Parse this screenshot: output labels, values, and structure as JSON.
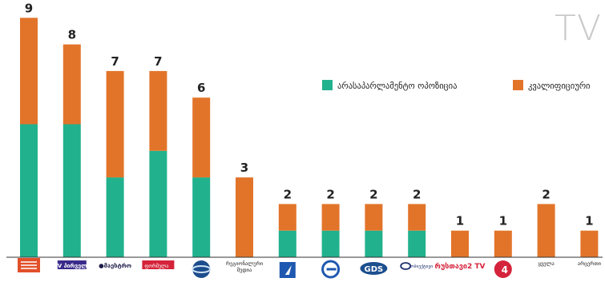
{
  "title": "TV",
  "chart_data": {
    "type": "bar",
    "stacked": true,
    "title": "TV",
    "ylim": [
      0,
      9
    ],
    "grid": false,
    "legend_position": "top-right",
    "categories": [
      "IMEDI",
      "TV Pirveli",
      "Maestro",
      "Formula",
      "Kavkasia",
      "რეგიონალური მედია",
      "Channel 1",
      "Ertsulovneba",
      "GDS",
      "Obieqtivi",
      "Rustavi 2",
      "Channel 4",
      "ყველა",
      "არცერთი"
    ],
    "series": [
      {
        "name": "არასაპარლამენტო ოპოზიცია",
        "color": "#21b18d",
        "values": [
          5,
          5,
          3,
          4,
          3,
          0,
          1,
          1,
          1,
          1,
          0,
          0,
          0,
          0
        ]
      },
      {
        "name": "კვალიფიციური",
        "color": "#e2742a",
        "values": [
          4,
          3,
          4,
          3,
          3,
          3,
          1,
          1,
          1,
          1,
          1,
          1,
          2,
          1
        ]
      }
    ],
    "totals": [
      9,
      8,
      7,
      7,
      6,
      3,
      2,
      2,
      2,
      2,
      1,
      1,
      2,
      1
    ]
  },
  "logos": [
    {
      "kind": "imedi",
      "text": "IMEDI"
    },
    {
      "kind": "tvpirveli",
      "text": "TV პირველი"
    },
    {
      "kind": "maestro",
      "text": "●მაესტრო"
    },
    {
      "kind": "formula",
      "text": "ფორმულა"
    },
    {
      "kind": "kavkasia",
      "text": ""
    },
    {
      "kind": "text",
      "text": "რეგიონალური მედია"
    },
    {
      "kind": "channel1",
      "text": ""
    },
    {
      "kind": "ertsulovneba",
      "text": ""
    },
    {
      "kind": "gds",
      "text": "GDS"
    },
    {
      "kind": "obieqtivi",
      "text": "ობიექტივი"
    },
    {
      "kind": "rustavi2",
      "text": "რუსთავი2 TV"
    },
    {
      "kind": "channel4",
      "text": "4"
    },
    {
      "kind": "text",
      "text": "ყველა"
    },
    {
      "kind": "text",
      "text": "არცერთი"
    }
  ]
}
